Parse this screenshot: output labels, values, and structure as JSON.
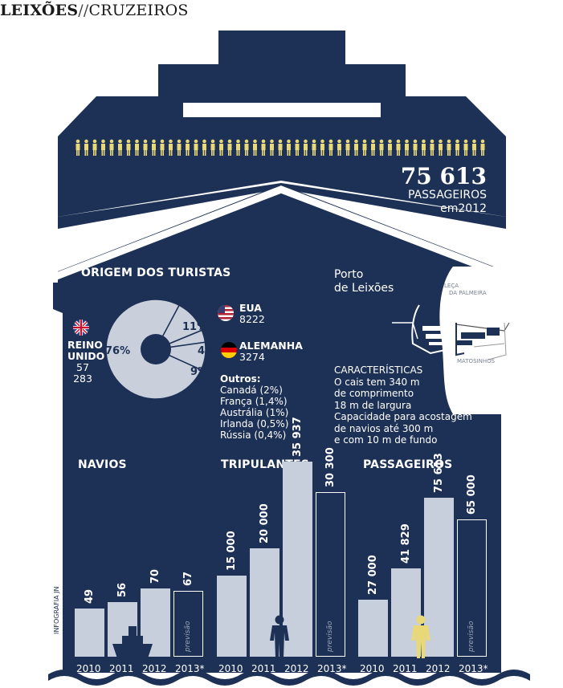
{
  "header": {
    "bold": "LEIXÕES",
    "sep": "//",
    "rest": "CRUZEIROS"
  },
  "total": {
    "number": "75 613",
    "label1": "PASSAGEIROS",
    "label2": "em2012"
  },
  "origin": {
    "title": "ORIGEM DOS TURISTAS",
    "uk": {
      "name1": "REINO",
      "name2": "UNIDO",
      "value": "57 283",
      "pct": "76%"
    },
    "usa": {
      "name": "EUA",
      "value": "8222",
      "pct": "11%"
    },
    "germany": {
      "name": "ALEMANHA",
      "value": "3274",
      "pct": "4%"
    },
    "others_pct": "9%",
    "others_title": "Outros:",
    "others": [
      "Canadá (2%)",
      "França (1,4%)",
      "Austrália (1%)",
      "Irlanda (0,5%)",
      "Rússia (0,4%)"
    ]
  },
  "port": {
    "title1": "Porto",
    "title2": "de Leixões",
    "map_labels": [
      "LEÇA",
      "DA PALMEIRA",
      "MATOSINHOS"
    ],
    "features_title": "CARACTERÍSTICAS",
    "features": [
      "O cais tem 340 m",
      "de comprimento",
      "18 m de largura",
      "Capacidade para acostagem",
      "de navios até 300 m",
      "e com 10 m de fundo"
    ]
  },
  "charts": {
    "projection_label": "previsão",
    "years": [
      "2010",
      "2011",
      "2012",
      "2013*"
    ],
    "navios": {
      "title": "NAVIOS",
      "labels": [
        "49",
        "56",
        "70",
        "67"
      ],
      "values": [
        49,
        56,
        70,
        67
      ]
    },
    "tripulantes": {
      "title": "TRIPULANTES",
      "labels": [
        "15 000",
        "20 000",
        "35 937",
        "30 300"
      ],
      "values": [
        15000,
        20000,
        35937,
        30300
      ]
    },
    "passageiros": {
      "title": "PASSAGEIROS",
      "labels": [
        "27 000",
        "41 829",
        "75 613",
        "65 000"
      ],
      "values": [
        27000,
        41829,
        75613,
        65000
      ]
    }
  },
  "credit": "INFOGRAFIA JN",
  "colors": {
    "navy": "#1d3055",
    "bar": "#c8cfdc",
    "accent_yellow": "#e8d878"
  }
}
